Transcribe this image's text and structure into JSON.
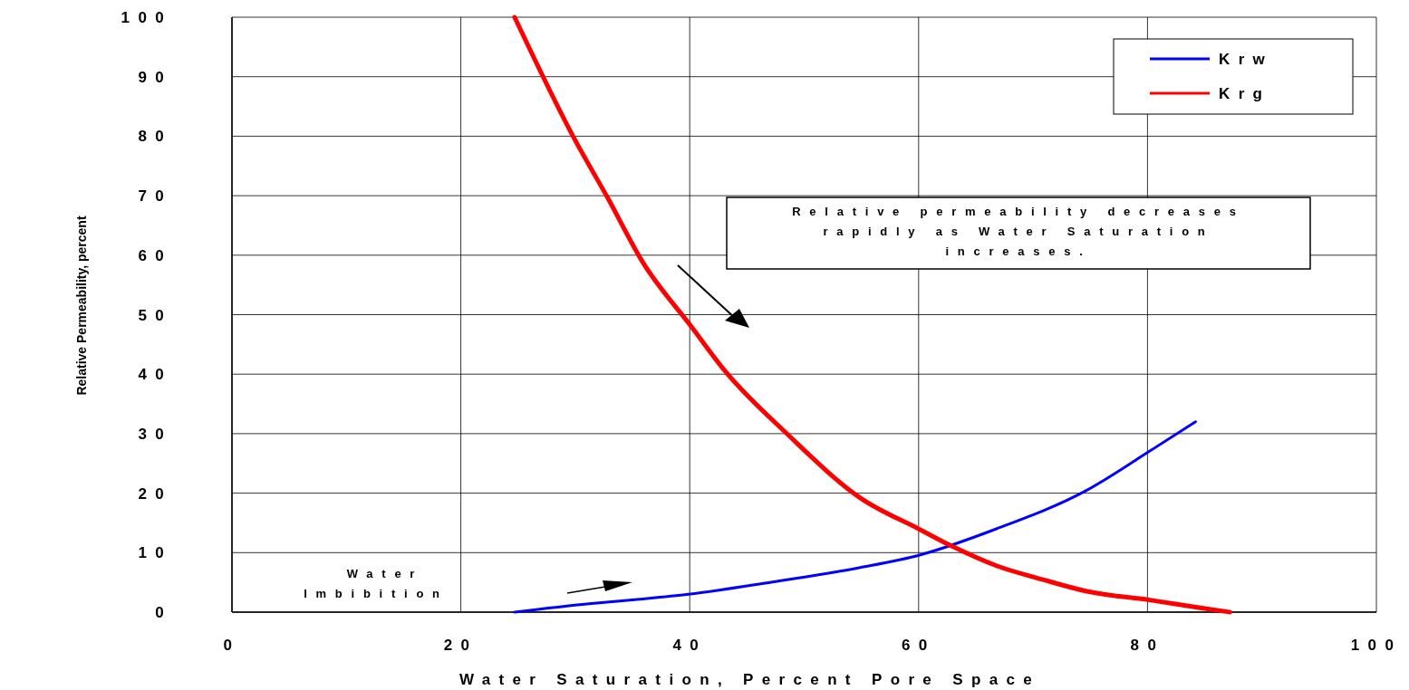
{
  "chart_data": {
    "type": "line",
    "xlabel": "Water Saturation, Percent Pore Space",
    "ylabel": "Relative Permeability, percent",
    "xlim": [
      0,
      100
    ],
    "ylim": [
      0,
      100
    ],
    "xticks": [
      0,
      20,
      40,
      60,
      80,
      100
    ],
    "yticks": [
      0,
      10,
      20,
      30,
      40,
      50,
      60,
      70,
      80,
      90,
      100
    ],
    "grid": true,
    "legend": "top right",
    "line_style": "solid",
    "series": [
      {
        "name": "Krw",
        "color": "#0000ff",
        "x": [
          24.7,
          31.2,
          35.2,
          39.9,
          47,
          54.9,
          60.1,
          66.8,
          74.7,
          80.3,
          84.2
        ],
        "values": [
          0,
          1.4,
          2.1,
          3,
          5,
          7.5,
          9.6,
          14,
          20.5,
          27.2,
          32
        ]
      },
      {
        "name": "Krg",
        "color": "#ff0000",
        "x": [
          24.7,
          29.8,
          32.9,
          35.9,
          40.1,
          43.1,
          48.6,
          54.9,
          60.1,
          62.9,
          66.8,
          70.8,
          74.7,
          80.3,
          85,
          87.2
        ],
        "values": [
          100,
          80,
          69.4,
          58.8,
          48.1,
          40.5,
          29.8,
          19.2,
          13.9,
          11.1,
          7.8,
          5.5,
          3.5,
          2,
          0.6,
          0
        ]
      }
    ],
    "annotations": [
      "Relative permeability decreases rapidly as Water Saturation increases.",
      "Water Imbibition"
    ]
  }
}
